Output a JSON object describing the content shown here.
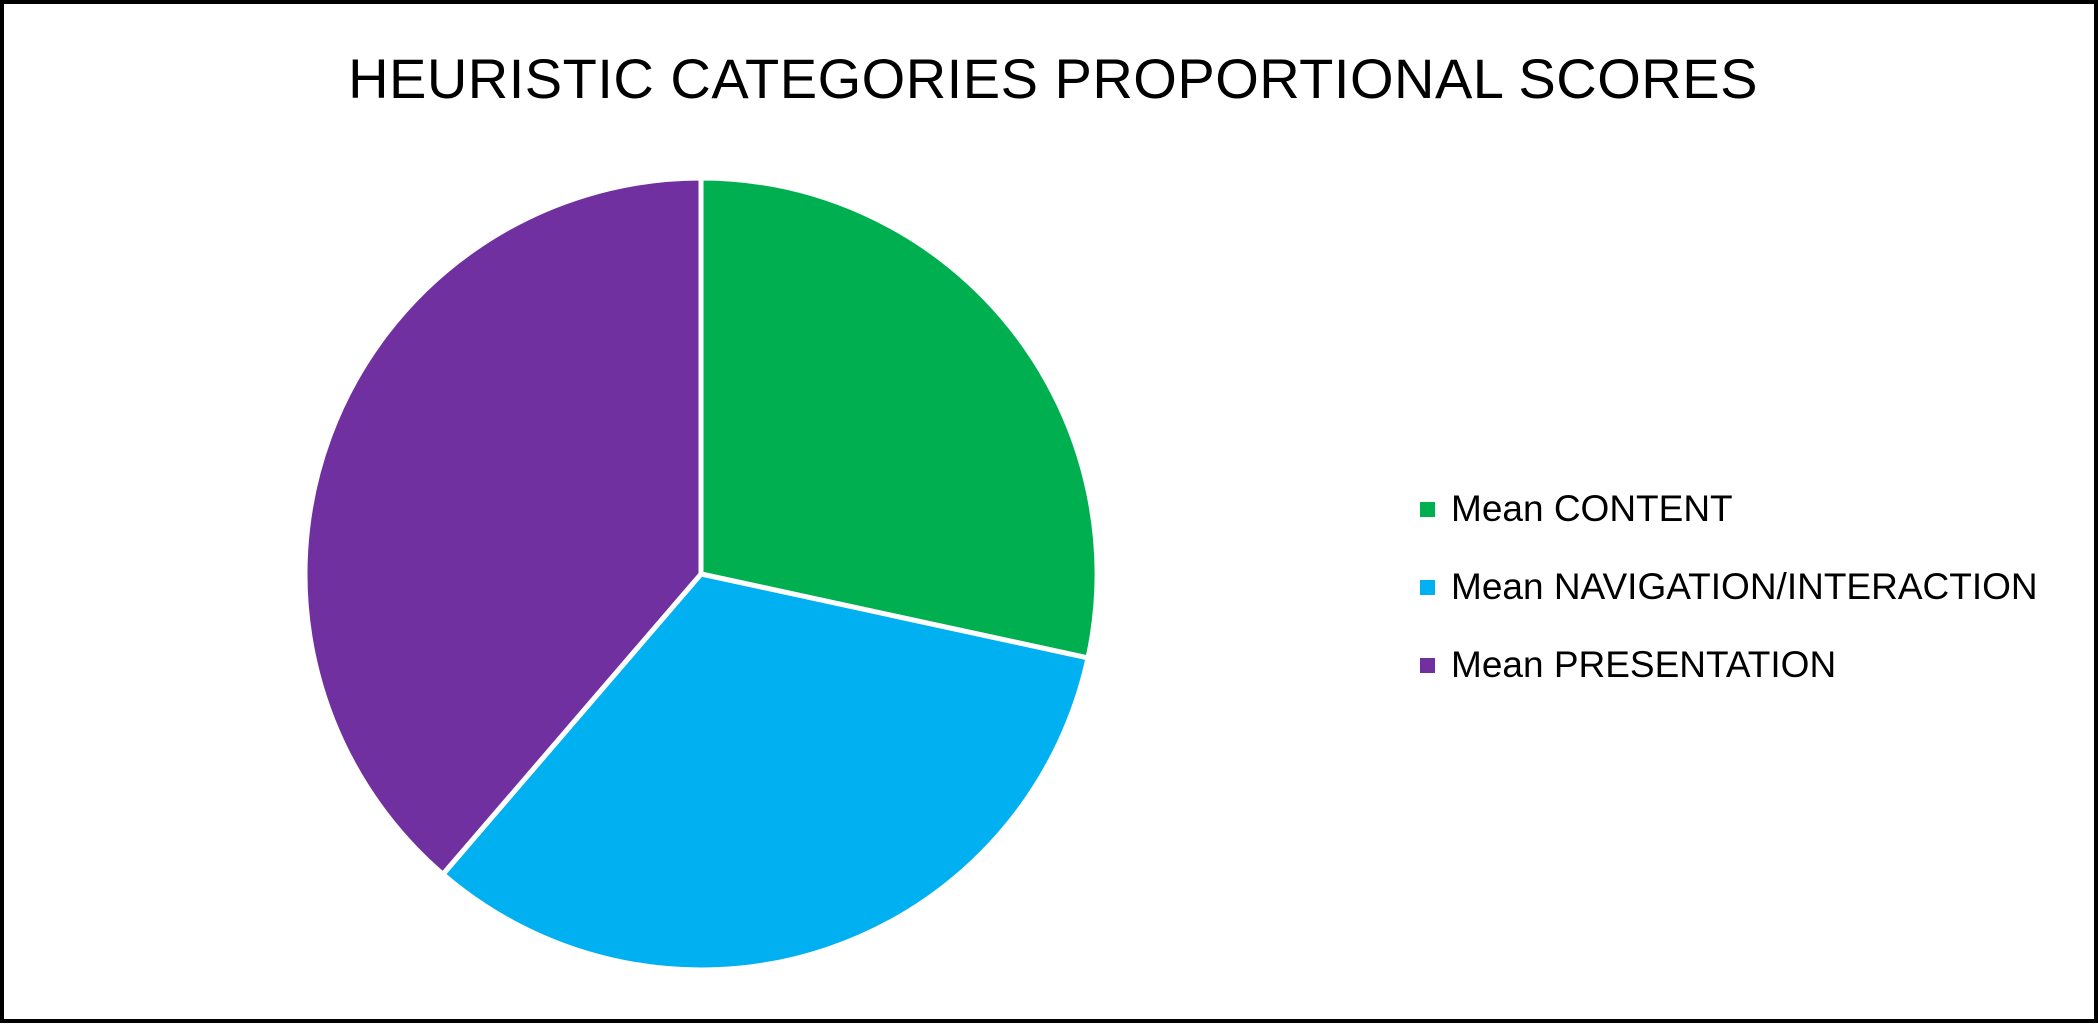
{
  "chart_data": {
    "type": "pie",
    "title": "HEURISTIC CATEGORIES PROPORTIONAL SCORES",
    "slices": [
      {
        "label": "Mean CONTENT",
        "value": 28.4,
        "color": "#00b050"
      },
      {
        "label": "Mean NAVIGATION/INTERACTION",
        "value": 32.9,
        "color": "#00b0f0"
      },
      {
        "label": "Mean PRESENTATION",
        "value": 38.7,
        "color": "#7030a0"
      }
    ],
    "start_angle": "12 o'clock",
    "direction": "clockwise",
    "legend_position": "right",
    "slice_border_color": "#ffffff"
  }
}
